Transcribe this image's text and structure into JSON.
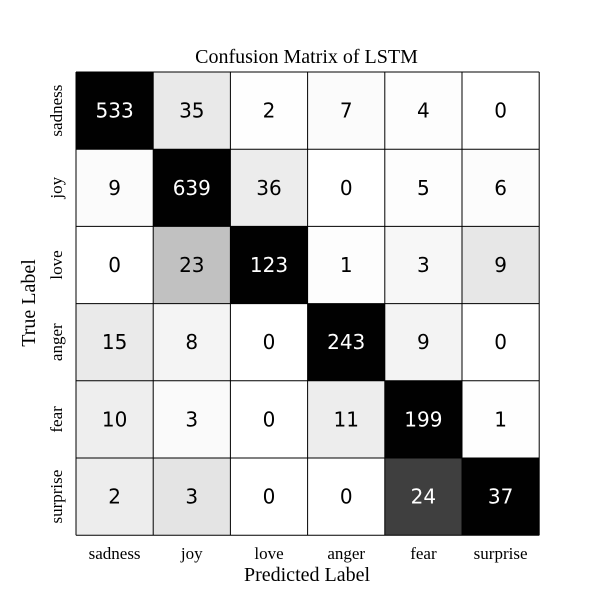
{
  "chart_data": {
    "type": "heatmap",
    "title": "Confusion Matrix of LSTM",
    "xlabel": "Predicted Label",
    "ylabel": "True Label",
    "x_categories": [
      "sadness",
      "joy",
      "love",
      "anger",
      "fear",
      "surprise"
    ],
    "y_categories": [
      "sadness",
      "joy",
      "love",
      "anger",
      "fear",
      "surprise"
    ],
    "values": [
      [
        533,
        35,
        2,
        7,
        4,
        0
      ],
      [
        9,
        639,
        36,
        0,
        5,
        6
      ],
      [
        0,
        23,
        123,
        1,
        3,
        9
      ],
      [
        15,
        8,
        0,
        243,
        9,
        0
      ],
      [
        10,
        3,
        0,
        11,
        199,
        1
      ],
      [
        2,
        3,
        0,
        0,
        24,
        37
      ]
    ],
    "colormap": "greys",
    "colors": {
      "low": "#ffffff",
      "high": "#000000",
      "grid": "#000000"
    },
    "grid": true,
    "legend": "none"
  }
}
